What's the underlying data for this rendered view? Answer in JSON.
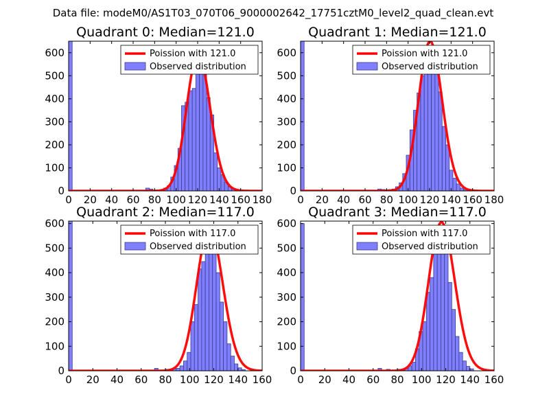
{
  "figure": {
    "suptitle": "Data file: modeM0/AS1T03_070T06_9000002642_17751cztM0_level2_quad_clean.evt",
    "colors": {
      "poisson_line": "#ff0000",
      "bar_fill": "#7f7fff",
      "bar_edge": "#3b3b8c",
      "axes": "#000000"
    }
  },
  "chart_data": [
    {
      "type": "bar",
      "title": "Quadrant 0: Median=121.0",
      "xlim": [
        0,
        180
      ],
      "ylim": [
        0,
        650
      ],
      "xticks": [
        0,
        20,
        40,
        60,
        80,
        100,
        120,
        140,
        160,
        180
      ],
      "yticks": [
        0,
        100,
        200,
        300,
        400,
        500,
        600
      ],
      "legend": {
        "position": "top-right",
        "line_label": "Poission with 121.0",
        "bar_label": "Observed distribution"
      },
      "poisson_mean": 121.0,
      "bin_width": 3.33,
      "bins": [
        [
          0,
          650
        ],
        [
          71.7,
          12
        ],
        [
          75,
          8
        ],
        [
          78.3,
          3
        ],
        [
          81.7,
          4
        ],
        [
          85,
          6
        ],
        [
          88.3,
          12
        ],
        [
          91.7,
          22
        ],
        [
          95,
          60
        ],
        [
          98.3,
          110
        ],
        [
          101.7,
          185
        ],
        [
          105,
          370
        ],
        [
          108.3,
          385
        ],
        [
          111.7,
          435
        ],
        [
          115,
          445
        ],
        [
          118.3,
          525
        ],
        [
          121.7,
          540
        ],
        [
          125,
          530
        ],
        [
          128.3,
          405
        ],
        [
          131.7,
          330
        ],
        [
          135,
          165
        ],
        [
          138.3,
          100
        ],
        [
          141.7,
          70
        ],
        [
          145,
          38
        ],
        [
          148.3,
          18
        ],
        [
          151.7,
          8
        ],
        [
          155,
          3
        ]
      ]
    },
    {
      "type": "bar",
      "title": "Quadrant 1: Median=121.0",
      "xlim": [
        0,
        180
      ],
      "ylim": [
        0,
        650
      ],
      "xticks": [
        0,
        20,
        40,
        60,
        80,
        100,
        120,
        140,
        160,
        180
      ],
      "yticks": [
        0,
        100,
        200,
        300,
        400,
        500,
        600
      ],
      "legend": {
        "position": "top-right",
        "line_label": "Poission with 121.0",
        "bar_label": "Observed distribution"
      },
      "poisson_mean": 121.0,
      "bin_width": 3.33,
      "bins": [
        [
          0,
          650
        ],
        [
          71.7,
          8
        ],
        [
          75,
          6
        ],
        [
          78.3,
          5
        ],
        [
          81.7,
          6
        ],
        [
          85,
          8
        ],
        [
          88.3,
          18
        ],
        [
          91.7,
          35
        ],
        [
          95,
          75
        ],
        [
          98.3,
          155
        ],
        [
          101.7,
          265
        ],
        [
          105,
          350
        ],
        [
          108.3,
          425
        ],
        [
          111.7,
          500
        ],
        [
          115,
          520
        ],
        [
          118.3,
          550
        ],
        [
          121.7,
          590
        ],
        [
          125,
          510
        ],
        [
          128.3,
          430
        ],
        [
          131.7,
          280
        ],
        [
          135,
          200
        ],
        [
          138.3,
          90
        ],
        [
          141.7,
          55
        ],
        [
          145,
          30
        ],
        [
          148.3,
          12
        ],
        [
          151.7,
          6
        ],
        [
          155,
          3
        ]
      ]
    },
    {
      "type": "bar",
      "title": "Quadrant 2: Median=117.0",
      "xlim": [
        0,
        160
      ],
      "ylim": [
        0,
        610
      ],
      "xticks": [
        0,
        20,
        40,
        60,
        80,
        100,
        120,
        140,
        160
      ],
      "yticks": [
        0,
        100,
        200,
        300,
        400,
        500,
        600
      ],
      "legend": {
        "position": "top-right",
        "line_label": "Poission with 117.0",
        "bar_label": "Observed distribution"
      },
      "poisson_mean": 117.0,
      "bin_width": 3.0,
      "bins": [
        [
          0,
          610
        ],
        [
          71,
          10
        ],
        [
          80,
          6
        ],
        [
          83,
          6
        ],
        [
          86,
          8
        ],
        [
          89,
          10
        ],
        [
          92,
          20
        ],
        [
          95,
          40
        ],
        [
          98,
          75
        ],
        [
          101,
          200
        ],
        [
          104,
          270
        ],
        [
          107,
          415
        ],
        [
          110,
          445
        ],
        [
          113,
          510
        ],
        [
          116,
          530
        ],
        [
          119,
          480
        ],
        [
          122,
          400
        ],
        [
          125,
          280
        ],
        [
          128,
          200
        ],
        [
          131,
          110
        ],
        [
          134,
          60
        ],
        [
          137,
          28
        ],
        [
          140,
          12
        ],
        [
          143,
          5
        ]
      ]
    },
    {
      "type": "bar",
      "title": "Quadrant 3: Median=117.0",
      "xlim": [
        0,
        160
      ],
      "ylim": [
        0,
        610
      ],
      "xticks": [
        0,
        20,
        40,
        60,
        80,
        100,
        120,
        140,
        160
      ],
      "yticks": [
        0,
        100,
        200,
        300,
        400,
        500,
        600
      ],
      "legend": {
        "position": "top-right",
        "line_label": "Poission with 117.0",
        "bar_label": "Observed distribution"
      },
      "poisson_mean": 117.0,
      "bin_width": 3.0,
      "bins": [
        [
          0,
          600
        ],
        [
          64,
          10
        ],
        [
          71,
          6
        ],
        [
          80,
          6
        ],
        [
          83,
          6
        ],
        [
          86,
          10
        ],
        [
          89,
          20
        ],
        [
          92,
          35
        ],
        [
          95,
          90
        ],
        [
          98,
          160
        ],
        [
          101,
          200
        ],
        [
          104,
          320
        ],
        [
          107,
          380
        ],
        [
          110,
          480
        ],
        [
          113,
          530
        ],
        [
          116,
          550
        ],
        [
          119,
          480
        ],
        [
          122,
          360
        ],
        [
          125,
          250
        ],
        [
          128,
          140
        ],
        [
          131,
          75
        ],
        [
          134,
          40
        ],
        [
          137,
          18
        ],
        [
          140,
          8
        ]
      ]
    }
  ]
}
